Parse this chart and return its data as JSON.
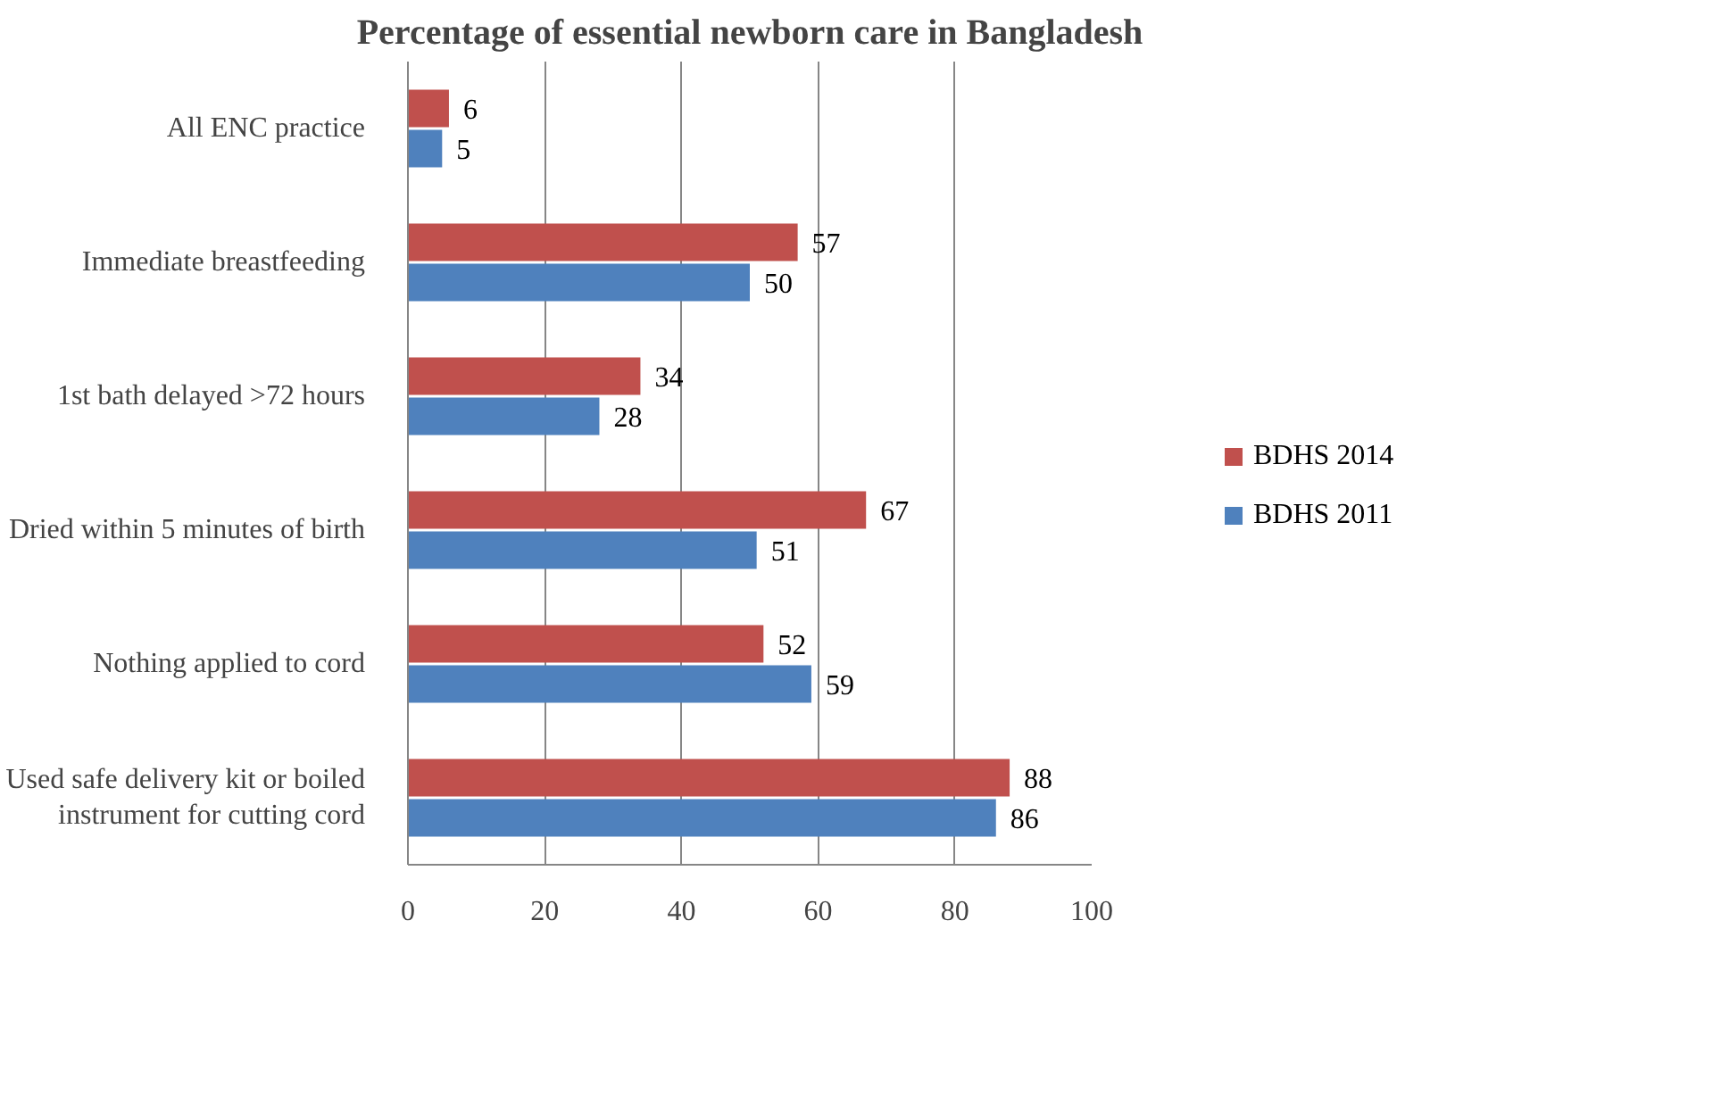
{
  "chart_data": {
    "type": "bar",
    "orientation": "horizontal",
    "title": "Percentage of essential newborn care in Bangladesh",
    "categories": [
      "All ENC practice",
      "Immediate breastfeeding",
      "1st bath delayed >72 hours",
      "Dried within 5 minutes of birth",
      "Nothing applied to cord",
      "Used safe delivery kit or boiled instrument for cutting cord"
    ],
    "series": [
      {
        "name": "BDHS 2014",
        "color": "#c0504d",
        "values": [
          6,
          57,
          34,
          67,
          52,
          88
        ]
      },
      {
        "name": "BDHS 2011",
        "color": "#4f81bd",
        "values": [
          5,
          50,
          28,
          51,
          59,
          86
        ]
      }
    ],
    "xlim": [
      0,
      100
    ],
    "xticks": [
      0,
      20,
      40,
      60,
      80,
      100
    ],
    "grid": "x",
    "legend": "right",
    "data_labels": true
  }
}
